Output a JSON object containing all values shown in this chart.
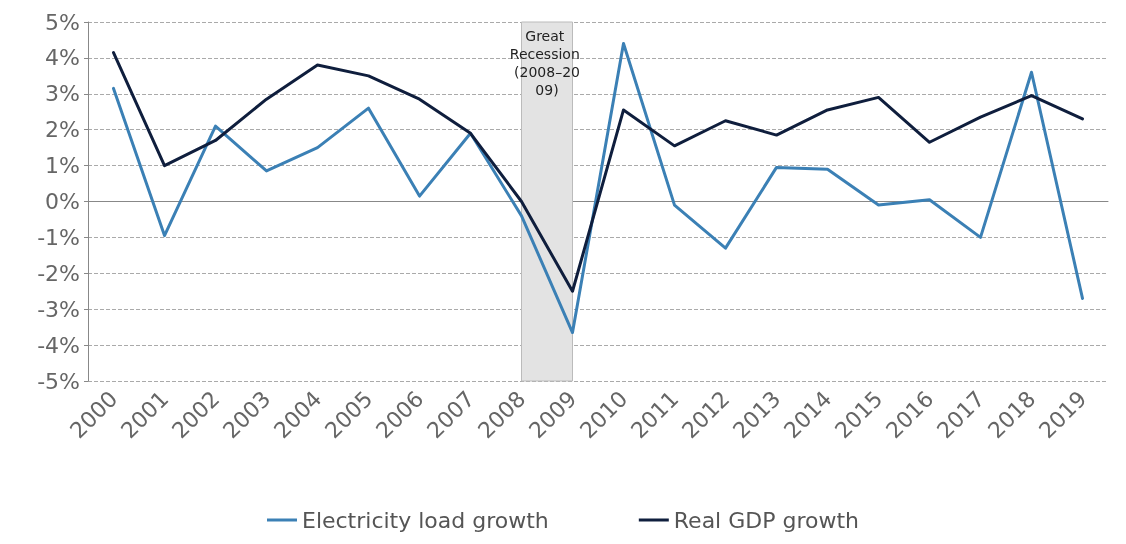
{
  "chart_data": {
    "type": "line",
    "categories": [
      "2000",
      "2001",
      "2002",
      "2003",
      "2004",
      "2005",
      "2006",
      "2007",
      "2008",
      "2009",
      "2010",
      "2011",
      "2012",
      "2013",
      "2014",
      "2015",
      "2016",
      "2017",
      "2018",
      "2019"
    ],
    "series": [
      {
        "name": "Electricity load growth",
        "color": "#3b80b5",
        "values": [
          3.15,
          -0.95,
          2.1,
          0.85,
          1.5,
          2.6,
          0.15,
          1.9,
          -0.4,
          -3.65,
          4.4,
          -0.1,
          -1.3,
          0.95,
          0.9,
          -0.1,
          0.05,
          -1.0,
          3.6,
          -2.7
        ]
      },
      {
        "name": "Real GDP growth",
        "color": "#0f1e3d",
        "values": [
          4.15,
          1.0,
          1.7,
          2.85,
          3.8,
          3.5,
          2.85,
          1.9,
          0.0,
          -2.5,
          2.55,
          1.55,
          2.25,
          1.85,
          2.55,
          2.9,
          1.65,
          2.35,
          2.95,
          2.3
        ]
      }
    ],
    "ylim": [
      -5,
      5
    ],
    "yticks": [
      {
        "value": -5,
        "label": "-5%"
      },
      {
        "value": -4,
        "label": "-4%"
      },
      {
        "value": -3,
        "label": "-3%"
      },
      {
        "value": -2,
        "label": "-2%"
      },
      {
        "value": -1,
        "label": "-1%"
      },
      {
        "value": 0,
        "label": "0%"
      },
      {
        "value": 1,
        "label": "1%"
      },
      {
        "value": 2,
        "label": "2%"
      },
      {
        "value": 3,
        "label": "3%"
      },
      {
        "value": 4,
        "label": "4%"
      },
      {
        "value": 5,
        "label": "5%"
      }
    ],
    "bands": [
      {
        "axis": "x",
        "from": "2008",
        "to": "2009",
        "label": "Great Recession (2008–2009)",
        "color": "#e3e3e3"
      }
    ],
    "grid": "y",
    "legend": "bottom",
    "marker": "none",
    "line_style": "solid"
  }
}
